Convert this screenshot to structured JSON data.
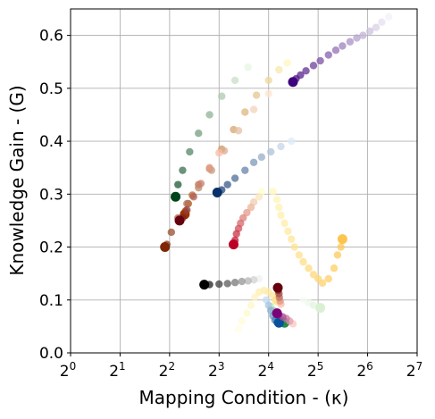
{
  "chart_data": {
    "type": "scatter",
    "title": "",
    "xlabel": "Mapping Condition - (κ)",
    "ylabel": "Knowledge Gain - (G)",
    "x_scale": "log2",
    "xlim": [
      1,
      128
    ],
    "ylim": [
      0.0,
      0.65
    ],
    "grid": true,
    "x_ticks": [
      {
        "value": 1,
        "base": "2",
        "exp": "0"
      },
      {
        "value": 2,
        "base": "2",
        "exp": "1"
      },
      {
        "value": 4,
        "base": "2",
        "exp": "2"
      },
      {
        "value": 8,
        "base": "2",
        "exp": "3"
      },
      {
        "value": 16,
        "base": "2",
        "exp": "4"
      },
      {
        "value": 32,
        "base": "2",
        "exp": "5"
      },
      {
        "value": 64,
        "base": "2",
        "exp": "6"
      },
      {
        "value": 128,
        "base": "2",
        "exp": "7"
      }
    ],
    "y_ticks": [
      {
        "value": 0.0,
        "label": "0.0"
      },
      {
        "value": 0.1,
        "label": "0.1"
      },
      {
        "value": 0.2,
        "label": "0.2"
      },
      {
        "value": 0.3,
        "label": "0.3"
      },
      {
        "value": 0.4,
        "label": "0.4"
      },
      {
        "value": 0.5,
        "label": "0.5"
      },
      {
        "value": 0.6,
        "label": "0.6"
      }
    ],
    "series": [
      {
        "colormap": "Purples",
        "color_start": "#f2f0f7",
        "color_end": "#3f007d",
        "points": [
          [
            86.0,
            0.635
          ],
          [
            78.0,
            0.625
          ],
          [
            72.0,
            0.615
          ],
          [
            66.0,
            0.608
          ],
          [
            60.0,
            0.6
          ],
          [
            55.0,
            0.595
          ],
          [
            50.0,
            0.588
          ],
          [
            45.0,
            0.58
          ],
          [
            41.0,
            0.572
          ],
          [
            37.0,
            0.563
          ],
          [
            33.0,
            0.552
          ],
          [
            30.0,
            0.543
          ],
          [
            27.0,
            0.533
          ],
          [
            25.0,
            0.525
          ],
          [
            23.5,
            0.518
          ],
          [
            22.5,
            0.512
          ]
        ]
      },
      {
        "colormap": "YlOrBr",
        "color_start": "#fff7bc",
        "color_end": "#993404",
        "points": [
          [
            20.8,
            0.548
          ],
          [
            18.5,
            0.535
          ],
          [
            16.0,
            0.515
          ],
          [
            13.5,
            0.487
          ],
          [
            11.5,
            0.455
          ],
          [
            9.8,
            0.422
          ],
          [
            8.3,
            0.385
          ],
          [
            7.0,
            0.348
          ],
          [
            6.0,
            0.318
          ],
          [
            5.5,
            0.298
          ],
          [
            5.2,
            0.282
          ],
          [
            5.0,
            0.268
          ],
          [
            4.95,
            0.262
          ]
        ]
      },
      {
        "colormap": "Greens",
        "color_start": "#e5f5e0",
        "color_end": "#00441b",
        "points": [
          [
            12.0,
            0.54
          ],
          [
            10.0,
            0.515
          ],
          [
            8.3,
            0.485
          ],
          [
            7.0,
            0.45
          ],
          [
            6.0,
            0.415
          ],
          [
            5.3,
            0.38
          ],
          [
            4.8,
            0.345
          ],
          [
            4.5,
            0.318
          ],
          [
            4.35,
            0.295
          ]
        ]
      },
      {
        "colormap": "Oranges",
        "color_start": "#fee6ce",
        "color_end": "#7f2704",
        "points": [
          [
            16.0,
            0.49
          ],
          [
            13.0,
            0.46
          ],
          [
            10.5,
            0.42
          ],
          [
            8.6,
            0.382
          ],
          [
            7.2,
            0.345
          ],
          [
            6.0,
            0.312
          ],
          [
            5.1,
            0.282
          ],
          [
            4.5,
            0.255
          ],
          [
            4.1,
            0.228
          ],
          [
            3.85,
            0.205
          ],
          [
            3.75,
            0.2
          ]
        ]
      },
      {
        "colormap": "Reds",
        "color_start": "#fcbba1",
        "color_end": "#67000d",
        "points": [
          [
            8.0,
            0.378
          ],
          [
            7.0,
            0.35
          ],
          [
            6.2,
            0.32
          ],
          [
            5.6,
            0.295
          ],
          [
            5.1,
            0.27
          ],
          [
            4.8,
            0.255
          ],
          [
            4.6,
            0.25
          ]
        ]
      },
      {
        "colormap": "Blues",
        "color_start": "#deebf7",
        "color_end": "#08306b",
        "points": [
          [
            22.0,
            0.4
          ],
          [
            19.0,
            0.39
          ],
          [
            16.5,
            0.38
          ],
          [
            14.5,
            0.37
          ],
          [
            13.0,
            0.36
          ],
          [
            11.5,
            0.345
          ],
          [
            10.0,
            0.33
          ],
          [
            9.0,
            0.318
          ],
          [
            8.3,
            0.308
          ],
          [
            7.8,
            0.303
          ]
        ]
      },
      {
        "colormap": "YlOrRd",
        "color_start": "#ffffcc",
        "color_end": "#bd0026",
        "points": [
          [
            14.5,
            0.305
          ],
          [
            14.0,
            0.295
          ],
          [
            13.0,
            0.285
          ],
          [
            12.5,
            0.275
          ],
          [
            11.8,
            0.265
          ],
          [
            11.2,
            0.255
          ],
          [
            10.8,
            0.245
          ],
          [
            10.5,
            0.235
          ],
          [
            10.2,
            0.225
          ],
          [
            10.0,
            0.213
          ],
          [
            9.8,
            0.205
          ]
        ]
      },
      {
        "colormap": "YlOrBr-light",
        "color_start": "#fff7bc",
        "color_end": "#fec44f",
        "points": [
          [
            17.0,
            0.305
          ],
          [
            18.0,
            0.29
          ],
          [
            18.5,
            0.275
          ],
          [
            19.0,
            0.26
          ],
          [
            20.0,
            0.245
          ],
          [
            21.0,
            0.23
          ],
          [
            22.0,
            0.215
          ],
          [
            23.0,
            0.2
          ],
          [
            24.5,
            0.185
          ],
          [
            26.0,
            0.172
          ],
          [
            28.0,
            0.16
          ],
          [
            30.0,
            0.148
          ],
          [
            32.0,
            0.14
          ],
          [
            34.0,
            0.132
          ],
          [
            37.0,
            0.14
          ],
          [
            40.0,
            0.16
          ],
          [
            42.0,
            0.185
          ],
          [
            44.0,
            0.2
          ],
          [
            45.0,
            0.215
          ]
        ]
      },
      {
        "colormap": "YlOrBr-low",
        "color_start": "#fffee0",
        "color_end": "#fee391",
        "points": [
          [
            10.5,
            0.045
          ],
          [
            11.0,
            0.06
          ],
          [
            11.8,
            0.075
          ],
          [
            12.5,
            0.09
          ],
          [
            13.2,
            0.105
          ],
          [
            14.0,
            0.115
          ],
          [
            15.0,
            0.118
          ],
          [
            16.0,
            0.115
          ],
          [
            17.0,
            0.108
          ],
          [
            18.0,
            0.1
          ]
        ]
      },
      {
        "colormap": "Greys",
        "color_start": "#f0f0f0",
        "color_end": "#000000",
        "points": [
          [
            14.0,
            0.14
          ],
          [
            13.0,
            0.138
          ],
          [
            12.0,
            0.136
          ],
          [
            11.0,
            0.135
          ],
          [
            10.0,
            0.133
          ],
          [
            9.0,
            0.131
          ],
          [
            8.0,
            0.13
          ],
          [
            7.0,
            0.129
          ],
          [
            6.5,
            0.129
          ]
        ]
      },
      {
        "colormap": "Greens-low",
        "color_start": "#c7e9c0",
        "color_end": "#238b45",
        "points": [
          [
            16.5,
            0.088
          ],
          [
            17.2,
            0.08
          ],
          [
            18.0,
            0.07
          ],
          [
            19.0,
            0.063
          ],
          [
            20.0,
            0.057
          ]
        ]
      },
      {
        "colormap": "Blues-low",
        "color_start": "#c6dbef",
        "color_end": "#08519c",
        "points": [
          [
            15.5,
            0.1
          ],
          [
            16.0,
            0.09
          ],
          [
            16.5,
            0.08
          ],
          [
            17.0,
            0.07
          ],
          [
            17.5,
            0.062
          ],
          [
            18.0,
            0.058
          ],
          [
            18.5,
            0.057
          ]
        ]
      },
      {
        "colormap": "RdPu",
        "color_start": "#fcc5c0",
        "color_end": "#7a0177",
        "points": [
          [
            22.5,
            0.055
          ],
          [
            21.5,
            0.06
          ],
          [
            20.5,
            0.065
          ],
          [
            19.5,
            0.068
          ],
          [
            18.5,
            0.072
          ],
          [
            18.0,
            0.075
          ]
        ]
      },
      {
        "colormap": "Reds-low",
        "color_start": "#fcbba1",
        "color_end": "#67000d",
        "points": [
          [
            19.0,
            0.092
          ],
          [
            18.8,
            0.098
          ],
          [
            18.6,
            0.105
          ],
          [
            18.5,
            0.112
          ],
          [
            18.3,
            0.118
          ],
          [
            18.2,
            0.123
          ]
        ]
      },
      {
        "colormap": "Greens-faint",
        "color_start": "#f7fcf5",
        "color_end": "#d9f0d3",
        "points": [
          [
            26.0,
            0.1
          ],
          [
            28.0,
            0.095
          ],
          [
            30.0,
            0.09
          ],
          [
            33.0,
            0.085
          ]
        ]
      }
    ]
  }
}
